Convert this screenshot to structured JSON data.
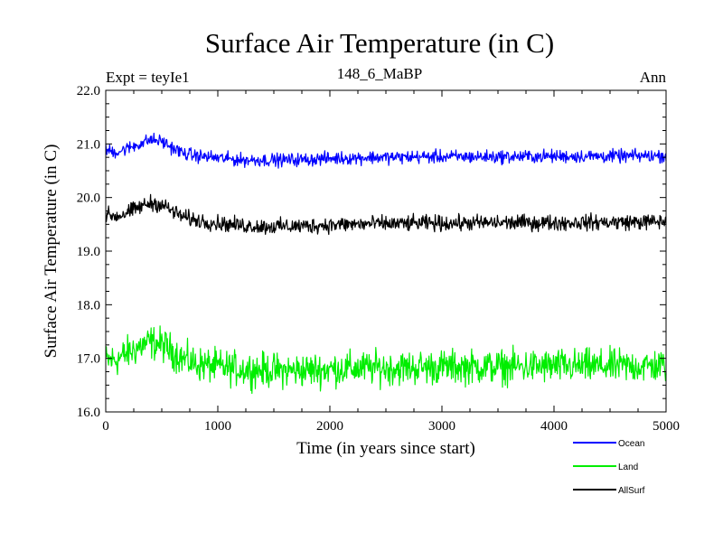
{
  "chart_data": {
    "type": "line",
    "title": "Surface Air Temperature (in C)",
    "subtitle_left": "Expt = teyIe1",
    "subtitle_center": "148_6_MaBP",
    "subtitle_right": "Ann",
    "xlabel": "Time (in years since start)",
    "ylabel": "Surface Air Temperature (in C)",
    "xlim": [
      0,
      5000
    ],
    "ylim": [
      16.0,
      22.0
    ],
    "x_ticks": [
      0,
      1000,
      2000,
      3000,
      4000,
      5000
    ],
    "x_tick_labels": [
      "0",
      "1000",
      "2000",
      "3000",
      "4000",
      "5000"
    ],
    "y_ticks": [
      16.0,
      17.0,
      18.0,
      19.0,
      20.0,
      21.0,
      22.0
    ],
    "y_tick_labels": [
      "16.0",
      "17.0",
      "18.0",
      "19.0",
      "20.0",
      "21.0",
      "22.0"
    ],
    "legend_position": "below-right",
    "series": [
      {
        "name": "Ocean",
        "color": "#0000ff",
        "noise_amplitude": 0.1,
        "x": [
          0,
          100,
          200,
          300,
          400,
          500,
          600,
          700,
          800,
          1000,
          1200,
          1400,
          1600,
          1800,
          2000,
          2200,
          2400,
          2600,
          2800,
          3000,
          3500,
          4000,
          4500,
          5000
        ],
        "values": [
          20.88,
          20.85,
          20.92,
          21.0,
          21.08,
          21.05,
          20.92,
          20.82,
          20.78,
          20.74,
          20.7,
          20.7,
          20.7,
          20.71,
          20.73,
          20.74,
          20.75,
          20.75,
          20.76,
          20.76,
          20.76,
          20.77,
          20.77,
          20.78
        ]
      },
      {
        "name": "Land",
        "color": "#00ee00",
        "noise_amplitude": 0.26,
        "x": [
          0,
          100,
          200,
          300,
          400,
          500,
          600,
          700,
          800,
          1000,
          1200,
          1400,
          1600,
          1800,
          2000,
          2200,
          2400,
          2600,
          2800,
          3000,
          3500,
          4000,
          4500,
          5000
        ],
        "values": [
          16.95,
          16.98,
          17.1,
          17.22,
          17.3,
          17.26,
          17.12,
          16.98,
          16.9,
          16.84,
          16.8,
          16.78,
          16.77,
          16.78,
          16.8,
          16.81,
          16.82,
          16.82,
          16.83,
          16.84,
          16.84,
          16.85,
          16.85,
          16.86
        ]
      },
      {
        "name": "AllSurf",
        "color": "#000000",
        "noise_amplitude": 0.12,
        "x": [
          0,
          100,
          200,
          300,
          400,
          500,
          600,
          700,
          800,
          1000,
          1200,
          1400,
          1600,
          1800,
          2000,
          2200,
          2400,
          2600,
          2800,
          3000,
          3500,
          4000,
          4500,
          5000
        ],
        "values": [
          19.68,
          19.65,
          19.72,
          19.82,
          19.9,
          19.87,
          19.74,
          19.63,
          19.58,
          19.52,
          19.48,
          19.46,
          19.46,
          19.47,
          19.49,
          19.5,
          19.51,
          19.51,
          19.52,
          19.52,
          19.53,
          19.53,
          19.54,
          19.55
        ]
      }
    ]
  }
}
